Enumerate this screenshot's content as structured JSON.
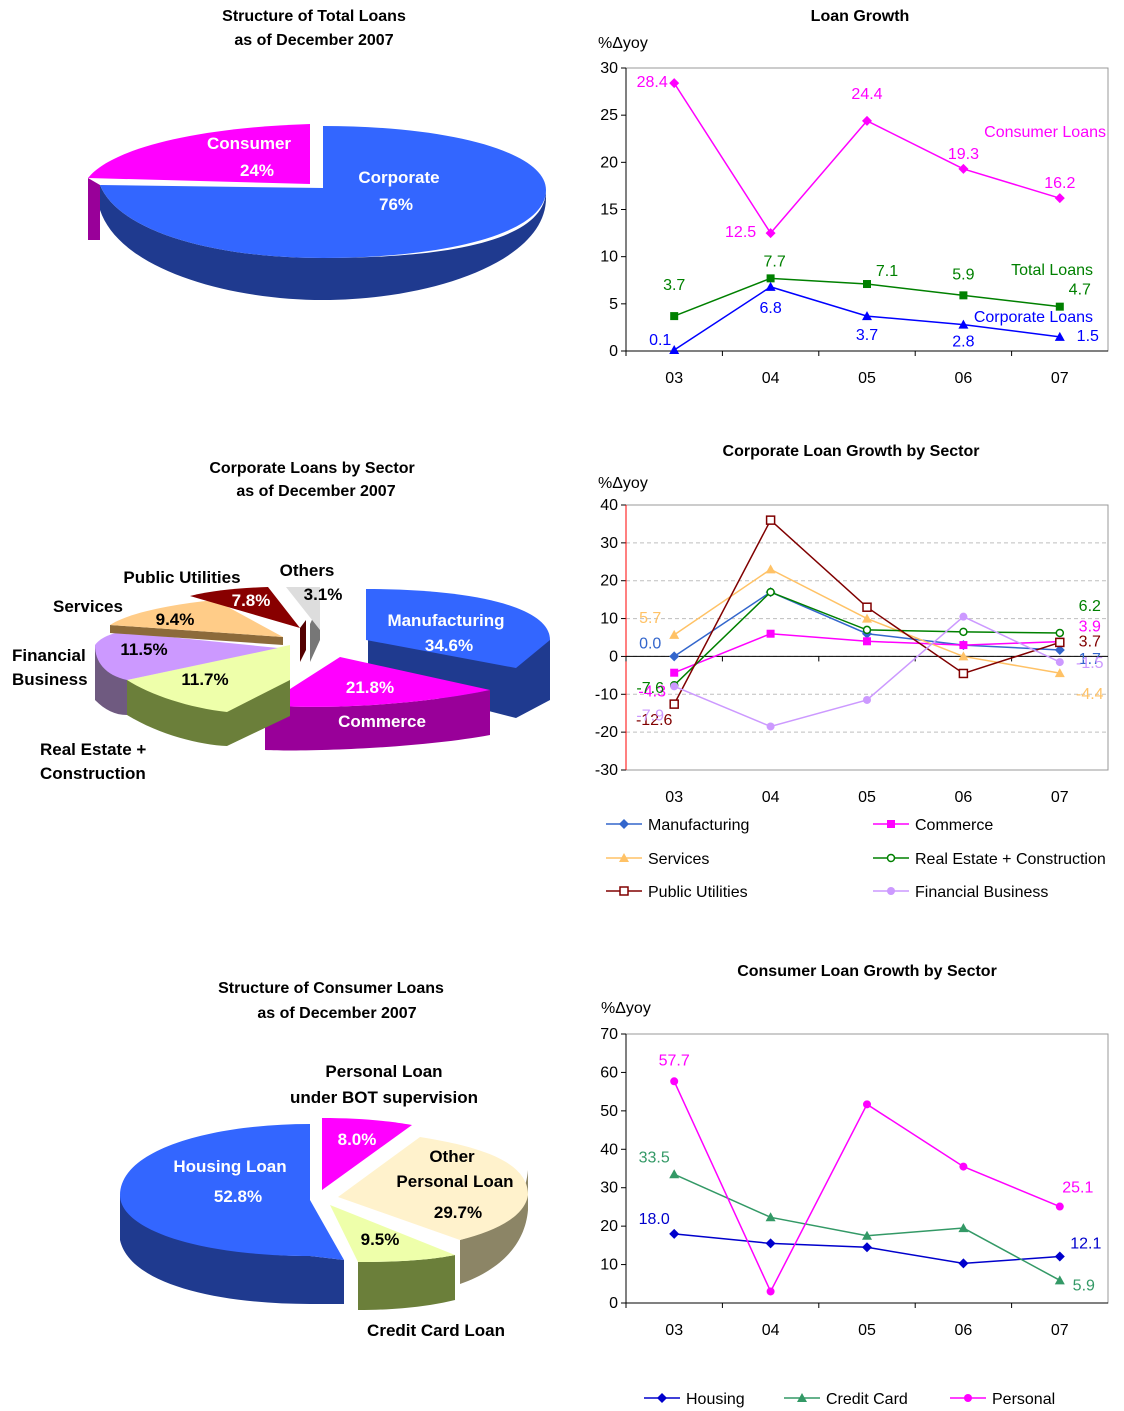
{
  "chart_data": [
    {
      "type": "pie",
      "title": "Structure of Total Loans",
      "subtitle": "as of December 2007",
      "slices": [
        {
          "label": "Corporate",
          "value": 76,
          "value_label": "76%",
          "color": "#3366FF"
        },
        {
          "label": "Consumer",
          "value": 24,
          "value_label": "24%",
          "color": "#FF00FF"
        }
      ]
    },
    {
      "type": "line",
      "title": "Loan Growth",
      "ylabel": "%Δyoy",
      "categories": [
        "03",
        "04",
        "05",
        "06",
        "07"
      ],
      "ylim": [
        0,
        30
      ],
      "yticks": [
        0,
        5,
        10,
        15,
        20,
        25,
        30
      ],
      "series": [
        {
          "name": "Consumer Loans",
          "color": "#FF00FF",
          "marker": "diamond",
          "values": [
            28.4,
            12.5,
            24.4,
            19.3,
            16.2
          ],
          "labels": [
            "28.4",
            "12.5",
            "24.4",
            "19.3",
            "16.2"
          ]
        },
        {
          "name": "Total Loans",
          "color": "#008000",
          "marker": "square",
          "values": [
            3.7,
            7.7,
            7.1,
            5.9,
            4.7
          ],
          "labels": [
            "3.7",
            "7.7",
            "7.1",
            "5.9",
            "4.7"
          ]
        },
        {
          "name": "Corporate Loans",
          "color": "#0000FF",
          "marker": "triangle",
          "values": [
            0.1,
            6.8,
            3.7,
            2.8,
            1.5
          ],
          "labels": [
            "0.1",
            "6.8",
            "3.7",
            "2.8",
            "1.5"
          ]
        }
      ]
    },
    {
      "type": "pie",
      "title": "Corporate Loans by Sector",
      "subtitle": "as of December 2007",
      "slices": [
        {
          "label": "Manufacturing",
          "value": 34.6,
          "value_label": "34.6%",
          "color": "#3366FF"
        },
        {
          "label": "Commerce",
          "value": 21.8,
          "value_label": "21.8%",
          "color": "#FF00FF"
        },
        {
          "label": "Real Estate + Construction",
          "value": 11.7,
          "value_label": "11.7%",
          "color": "#EEFFAA"
        },
        {
          "label": "Financial Business",
          "value": 11.5,
          "value_label": "11.5%",
          "color": "#CC99FF"
        },
        {
          "label": "Services",
          "value": 9.4,
          "value_label": "9.4%",
          "color": "#FFCC88"
        },
        {
          "label": "Public Utilities",
          "value": 7.8,
          "value_label": "7.8%",
          "color": "#880000"
        },
        {
          "label": "Others",
          "value": 3.1,
          "value_label": "3.1%",
          "color": "#DDDDDD"
        }
      ]
    },
    {
      "type": "line",
      "title": "Corporate Loan Growth by Sector",
      "ylabel": "%Δyoy",
      "categories": [
        "03",
        "04",
        "05",
        "06",
        "07"
      ],
      "ylim": [
        -30,
        40
      ],
      "yticks": [
        -30,
        -20,
        -10,
        0,
        10,
        20,
        30,
        40
      ],
      "series": [
        {
          "name": "Manufacturing",
          "color": "#3366CC",
          "marker": "diamond",
          "values": [
            0.0,
            17,
            6,
            3,
            1.7
          ],
          "labels": [
            "0.0",
            "",
            "",
            "",
            "1.7"
          ]
        },
        {
          "name": "Commerce",
          "color": "#FF00FF",
          "marker": "square",
          "values": [
            -4.3,
            6,
            4,
            3,
            3.9
          ],
          "labels": [
            "-4.3",
            "",
            "",
            "",
            "3.9"
          ]
        },
        {
          "name": "Services",
          "color": "#FFC266",
          "marker": "triangle",
          "values": [
            5.7,
            23,
            10,
            0,
            -4.4
          ],
          "labels": [
            "5.7",
            "",
            "",
            "",
            "-4.4"
          ]
        },
        {
          "name": "Real Estate + Construction",
          "color": "#008000",
          "marker": "circle-open",
          "values": [
            -7.6,
            17,
            7,
            6.5,
            6.2
          ],
          "labels": [
            "-7.6",
            "",
            "",
            "",
            "6.2"
          ]
        },
        {
          "name": "Public Utilities",
          "color": "#800000",
          "marker": "square-open",
          "values": [
            -12.6,
            36,
            13,
            -4.5,
            3.7
          ],
          "labels": [
            "-12.6",
            "",
            "",
            "",
            "3.7"
          ]
        },
        {
          "name": "Financial Business",
          "color": "#CC99FF",
          "marker": "circle",
          "values": [
            -7.9,
            -18.5,
            -11.5,
            10.5,
            -1.5
          ],
          "labels": [
            "-7.9",
            "",
            "",
            "",
            "-1.5"
          ]
        }
      ]
    },
    {
      "type": "pie",
      "title": "Structure of Consumer Loans",
      "subtitle": "as of December 2007",
      "slices": [
        {
          "label": "Housing Loan",
          "value": 52.8,
          "value_label": "52.8%",
          "color": "#3366FF"
        },
        {
          "label": "Personal Loan under BOT supervision",
          "value": 8.0,
          "value_label": "8.0%",
          "color": "#FF00FF"
        },
        {
          "label": "Other Personal Loan",
          "value": 29.7,
          "value_label": "29.7%",
          "color": "#FFF2CC"
        },
        {
          "label": "Credit Card Loan",
          "value": 9.5,
          "value_label": "9.5%",
          "color": "#EEFFAA"
        }
      ]
    },
    {
      "type": "line",
      "title": "Consumer Loan Growth by Sector",
      "ylabel": "%Δyoy",
      "categories": [
        "03",
        "04",
        "05",
        "06",
        "07"
      ],
      "ylim": [
        0,
        70
      ],
      "yticks": [
        0,
        10,
        20,
        30,
        40,
        50,
        60,
        70
      ],
      "series": [
        {
          "name": "Housing",
          "color": "#0000CC",
          "marker": "diamond",
          "values": [
            18.0,
            15.5,
            14.5,
            10.3,
            12.1
          ],
          "labels": [
            "18.0",
            "",
            "",
            "",
            "12.1"
          ]
        },
        {
          "name": "Credit Card",
          "color": "#339966",
          "marker": "triangle",
          "values": [
            33.5,
            22.3,
            17.5,
            19.5,
            5.9
          ],
          "labels": [
            "33.5",
            "",
            "",
            "",
            "5.9"
          ]
        },
        {
          "name": "Personal",
          "color": "#FF00FF",
          "marker": "circle",
          "values": [
            57.7,
            3,
            51.7,
            35.5,
            25.1
          ],
          "labels": [
            "57.7",
            "",
            "",
            "",
            "25.1"
          ]
        }
      ]
    }
  ]
}
